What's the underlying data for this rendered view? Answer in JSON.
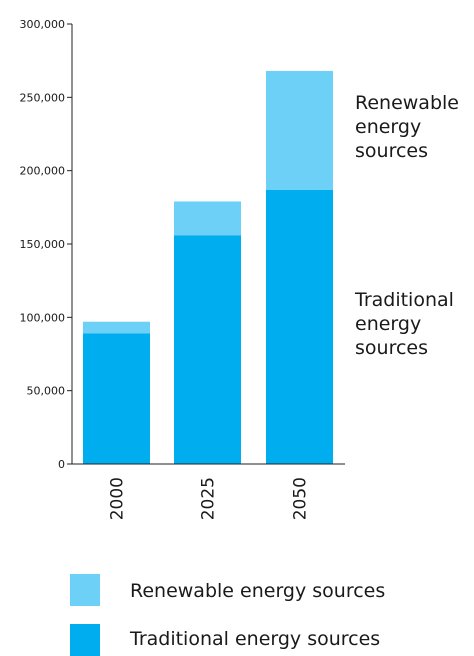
{
  "chart_data": {
    "type": "bar",
    "stacked": true,
    "categories": [
      "2000",
      "2025",
      "2050"
    ],
    "series": [
      {
        "name": "Traditional energy sources",
        "values": [
          89000,
          156000,
          187000
        ],
        "color": "#00adef"
      },
      {
        "name": "Renewable energy sources",
        "values": [
          8000,
          23000,
          81000
        ],
        "color": "#6dd0f7"
      }
    ],
    "ylim": [
      0,
      300000
    ],
    "yticks": [
      "0",
      "50,000",
      "100,000",
      "150,000",
      "200,000",
      "250,000",
      "300,000"
    ],
    "xlabel": "",
    "ylabel": "",
    "grid": false,
    "legend_placement": "bottom",
    "annotations": {
      "renewable": [
        "Renewable",
        "energy",
        "sources"
      ],
      "traditional": [
        "Traditional",
        "energy",
        "sources"
      ]
    },
    "legend": [
      {
        "label": "Renewable energy sources",
        "color": "#6dd0f7"
      },
      {
        "label": "Traditional energy sources",
        "color": "#00adef"
      }
    ]
  }
}
